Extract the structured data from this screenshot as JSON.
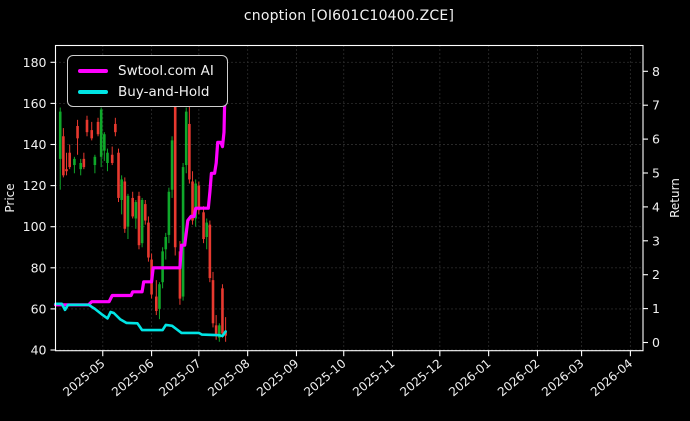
{
  "chart_data": {
    "type": "candlestick",
    "title": "cnoption [OI601C10400.ZCE]",
    "colors": {
      "background": "#000000",
      "text": "#f0f0f0",
      "grid": "#4f4f4f",
      "frame": "#ffffff",
      "candle_up": "#0fa82a",
      "candle_down": "#e8392f",
      "ai_line": "#ff00ff",
      "buy_hold_line": "#00e5e5"
    },
    "x_axis": {
      "start": "2025-04-01",
      "end": "2026-04-09",
      "tick_labels": [
        "2025-05",
        "2025-06",
        "2025-07",
        "2025-08",
        "2025-09",
        "2025-10",
        "2025-11",
        "2025-12",
        "2026-01",
        "2026-02",
        "2026-03",
        "2026-04"
      ],
      "tick_rotation_deg": -40
    },
    "price_axis": {
      "label": "Price",
      "ticks": [
        40,
        60,
        80,
        100,
        120,
        140,
        160,
        180
      ],
      "min": 39.7,
      "max": 188.2
    },
    "return_axis": {
      "label": "Return",
      "ticks": [
        0,
        1,
        2,
        3,
        4,
        5,
        6,
        7,
        8
      ],
      "min": -0.24,
      "max": 8.76
    },
    "grid": {
      "show": true,
      "style": "dotted"
    },
    "legend": {
      "position": "upper-left",
      "entries": [
        {
          "label": "Swtool.com AI",
          "color": "#ff00ff"
        },
        {
          "label": "Buy-and-Hold",
          "color": "#00e5e5"
        }
      ]
    },
    "candles": [
      [
        "2025-04-04",
        133,
        158,
        118,
        156
      ],
      [
        "2025-04-06",
        144,
        148,
        124,
        125
      ],
      [
        "2025-04-08",
        128,
        136,
        125,
        127
      ],
      [
        "2025-04-10",
        136,
        140,
        128,
        129
      ],
      [
        "2025-04-13",
        130,
        134,
        126,
        133
      ],
      [
        "2025-04-15",
        149,
        152,
        135,
        143
      ],
      [
        "2025-04-17",
        128,
        133,
        125,
        131
      ],
      [
        "2025-04-19",
        133,
        136,
        128,
        129
      ],
      [
        "2025-04-21",
        152,
        154,
        144,
        146
      ],
      [
        "2025-04-24",
        147,
        151,
        142,
        143
      ],
      [
        "2025-04-26",
        130,
        135,
        126,
        134
      ],
      [
        "2025-04-28",
        151,
        153,
        144,
        145
      ],
      [
        "2025-04-30",
        134,
        158,
        129,
        157
      ],
      [
        "2025-05-02",
        137,
        146,
        132,
        145
      ],
      [
        "2025-05-04",
        131,
        138,
        127,
        136
      ],
      [
        "2025-05-07",
        135,
        139,
        130,
        131
      ],
      [
        "2025-05-09",
        150,
        153,
        144,
        146
      ],
      [
        "2025-05-11",
        136,
        138,
        112,
        114
      ],
      [
        "2025-05-13",
        113,
        125,
        106,
        123
      ],
      [
        "2025-05-15",
        122,
        124,
        97,
        99
      ],
      [
        "2025-05-17",
        100,
        116,
        94,
        115
      ],
      [
        "2025-05-20",
        114,
        117,
        104,
        105
      ],
      [
        "2025-05-22",
        104,
        113,
        99,
        112
      ],
      [
        "2025-05-24",
        115,
        117,
        89,
        91
      ],
      [
        "2025-05-26",
        92,
        114,
        90,
        113
      ],
      [
        "2025-05-28",
        111,
        113,
        101,
        103
      ],
      [
        "2025-05-30",
        102,
        105,
        83,
        85
      ],
      [
        "2025-06-01",
        84,
        87,
        65,
        67
      ],
      [
        "2025-06-04",
        66,
        74,
        57,
        59
      ],
      [
        "2025-06-06",
        60,
        73,
        55,
        72
      ],
      [
        "2025-06-08",
        73,
        90,
        70,
        88
      ],
      [
        "2025-06-10",
        89,
        97,
        84,
        95
      ],
      [
        "2025-06-12",
        96,
        119,
        92,
        117
      ],
      [
        "2025-06-14",
        118,
        144,
        114,
        142
      ],
      [
        "2025-06-16",
        160,
        164,
        86,
        90
      ],
      [
        "2025-06-19",
        88,
        93,
        62,
        65
      ],
      [
        "2025-06-21",
        66,
        131,
        64,
        129
      ],
      [
        "2025-06-23",
        130,
        158,
        126,
        156
      ],
      [
        "2025-06-25",
        150,
        161,
        121,
        123
      ],
      [
        "2025-06-27",
        122,
        127,
        101,
        103
      ],
      [
        "2025-06-29",
        104,
        123,
        100,
        121
      ],
      [
        "2025-07-01",
        120,
        122,
        106,
        108
      ],
      [
        "2025-07-04",
        107,
        110,
        92,
        94
      ],
      [
        "2025-07-06",
        95,
        104,
        89,
        102
      ],
      [
        "2025-07-08",
        101,
        103,
        73,
        75
      ],
      [
        "2025-07-10",
        74,
        78,
        51,
        53
      ],
      [
        "2025-07-12",
        52,
        57,
        45,
        47
      ],
      [
        "2025-07-14",
        46,
        53,
        44,
        52
      ],
      [
        "2025-07-16",
        70,
        72,
        46,
        48
      ],
      [
        "2025-07-18",
        49,
        56,
        44,
        47
      ]
    ],
    "series": [
      {
        "name": "Swtool.com AI",
        "color": "#ff00ff",
        "width": 3.2,
        "points": [
          [
            "2025-04-01",
            62
          ],
          [
            "2025-04-22",
            62
          ],
          [
            "2025-04-24",
            63.5
          ],
          [
            "2025-05-05",
            63.5
          ],
          [
            "2025-05-07",
            66.5
          ],
          [
            "2025-05-19",
            66.5
          ],
          [
            "2025-05-20",
            68.3
          ],
          [
            "2025-05-26",
            68.3
          ],
          [
            "2025-05-27",
            73.2
          ],
          [
            "2025-06-01",
            73.2
          ],
          [
            "2025-06-02",
            80
          ],
          [
            "2025-06-19",
            80
          ],
          [
            "2025-06-20",
            91
          ],
          [
            "2025-06-22",
            91
          ],
          [
            "2025-06-24",
            103
          ],
          [
            "2025-06-26",
            105
          ],
          [
            "2025-06-28",
            105
          ],
          [
            "2025-06-29",
            109
          ],
          [
            "2025-07-07",
            109
          ],
          [
            "2025-07-08",
            117
          ],
          [
            "2025-07-09",
            126
          ],
          [
            "2025-07-11",
            126
          ],
          [
            "2025-07-12",
            131
          ],
          [
            "2025-07-13",
            141
          ],
          [
            "2025-07-15",
            141
          ],
          [
            "2025-07-16",
            139
          ],
          [
            "2025-07-17",
            146
          ],
          [
            "2025-07-18",
            181
          ]
        ]
      },
      {
        "name": "Buy-and-Hold",
        "color": "#00e5e5",
        "width": 2.6,
        "points": [
          [
            "2025-04-01",
            62.5
          ],
          [
            "2025-04-05",
            62.5
          ],
          [
            "2025-04-07",
            59.5
          ],
          [
            "2025-04-09",
            62
          ],
          [
            "2025-04-22",
            62
          ],
          [
            "2025-04-26",
            60
          ],
          [
            "2025-05-01",
            57
          ],
          [
            "2025-05-04",
            55.4
          ],
          [
            "2025-05-06",
            58.5
          ],
          [
            "2025-05-08",
            58
          ],
          [
            "2025-05-12",
            55
          ],
          [
            "2025-05-16",
            53.2
          ],
          [
            "2025-05-23",
            53
          ],
          [
            "2025-05-26",
            49.7
          ],
          [
            "2025-06-08",
            49.7
          ],
          [
            "2025-06-10",
            52.2
          ],
          [
            "2025-06-14",
            51.8
          ],
          [
            "2025-06-17",
            50
          ],
          [
            "2025-06-20",
            48.3
          ],
          [
            "2025-07-01",
            48.3
          ],
          [
            "2025-07-03",
            47.5
          ],
          [
            "2025-07-14",
            47.2
          ],
          [
            "2025-07-16",
            46.8
          ],
          [
            "2025-07-18",
            49
          ]
        ]
      }
    ]
  }
}
